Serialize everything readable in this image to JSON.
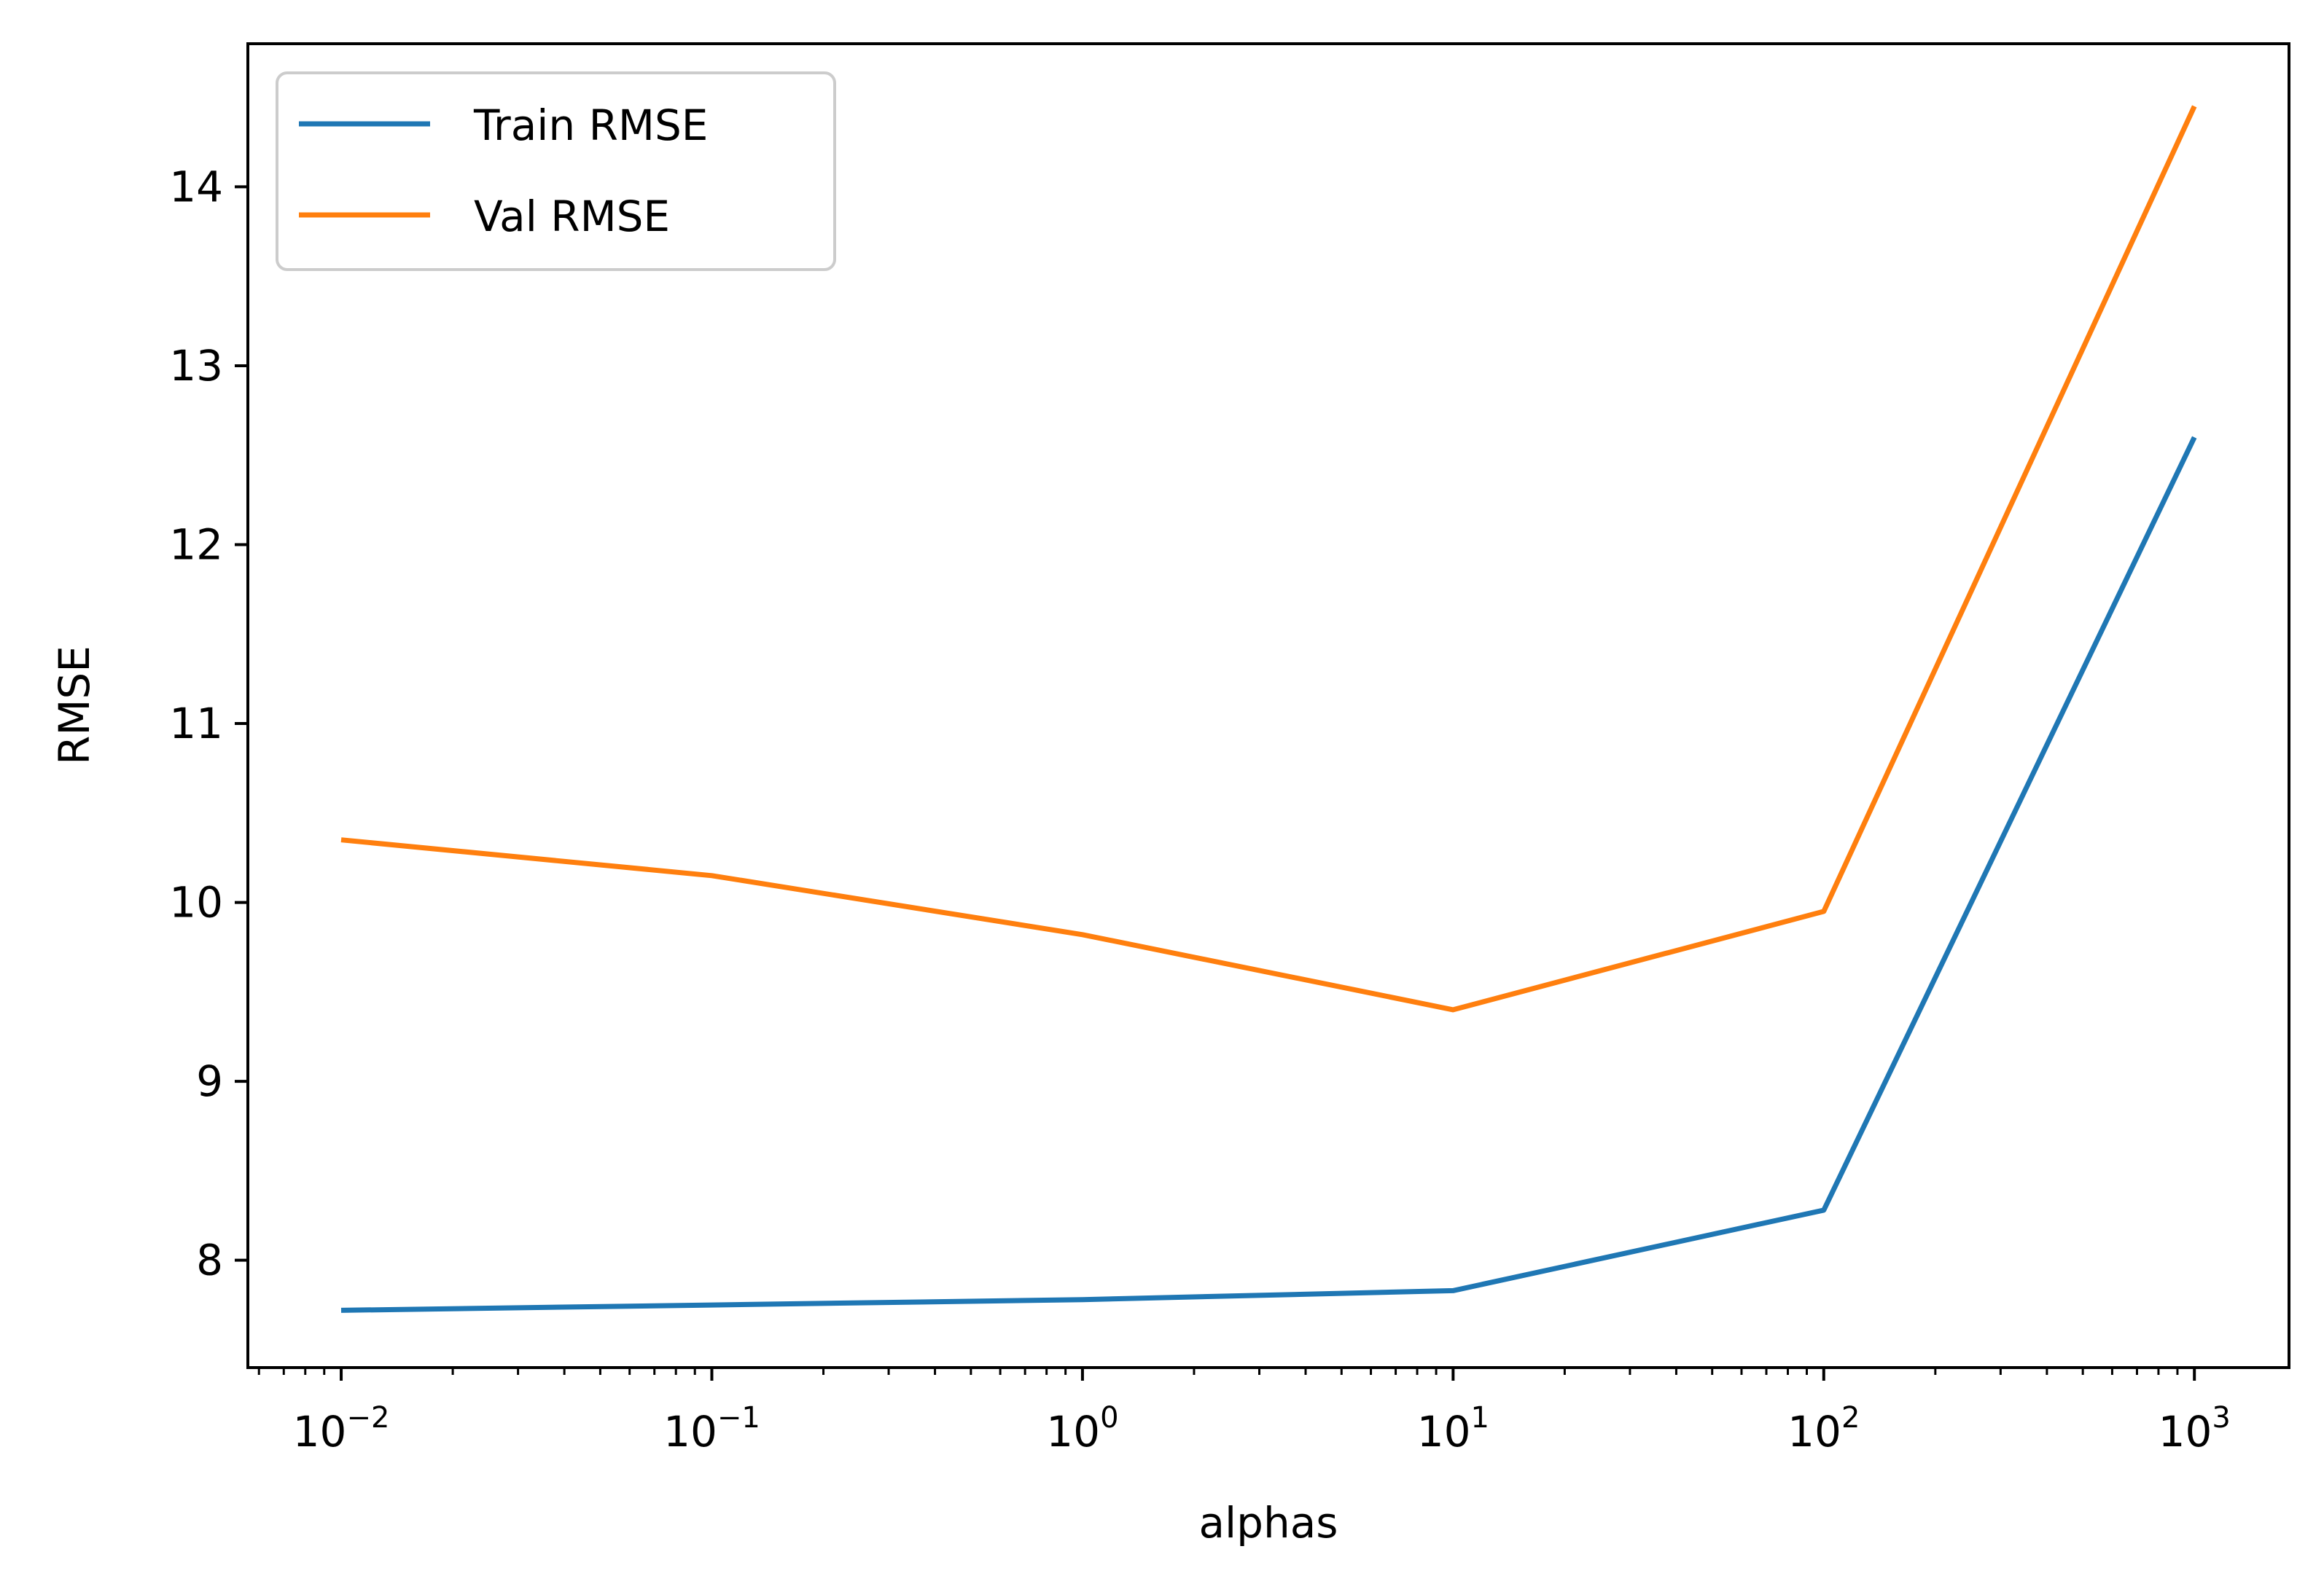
{
  "chart_data": {
    "type": "line",
    "title": "",
    "xlabel": "alphas",
    "ylabel": "RMSE",
    "xscale": "log",
    "xlim": [
      0.0056,
      1800
    ],
    "ylim": [
      7.4,
      14.8
    ],
    "x": [
      0.01,
      0.1,
      1,
      10,
      100,
      1000
    ],
    "x_tick_labels": [
      {
        "base": "10",
        "exp": "−2",
        "value": 0.01
      },
      {
        "base": "10",
        "exp": "−1",
        "value": 0.1
      },
      {
        "base": "10",
        "exp": "0",
        "value": 1
      },
      {
        "base": "10",
        "exp": "1",
        "value": 10
      },
      {
        "base": "10",
        "exp": "2",
        "value": 100
      },
      {
        "base": "10",
        "exp": "3",
        "value": 1000
      }
    ],
    "y_ticks": [
      8,
      9,
      10,
      11,
      12,
      13,
      14
    ],
    "y_tick_labels": [
      "8",
      "9",
      "10",
      "11",
      "12",
      "13",
      "14"
    ],
    "grid": false,
    "legend_position": "top-left",
    "series": [
      {
        "name": "Train RMSE",
        "color": "#1f77b4",
        "values": [
          7.72,
          7.75,
          7.78,
          7.83,
          8.28,
          12.6
        ]
      },
      {
        "name": "Val RMSE",
        "color": "#ff7f0e",
        "values": [
          10.35,
          10.15,
          9.82,
          9.4,
          9.95,
          14.45
        ]
      }
    ]
  }
}
